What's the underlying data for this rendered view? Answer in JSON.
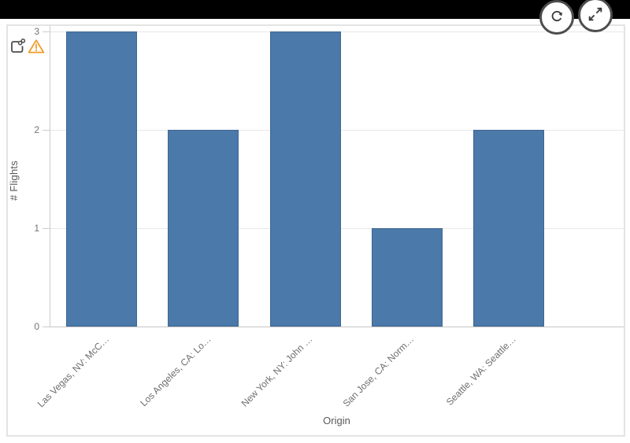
{
  "window": {
    "topbar_color": "#000000"
  },
  "toolbar": {
    "buttons": [
      {
        "name": "refresh",
        "icon": "refresh-icon"
      },
      {
        "name": "expand",
        "icon": "expand-arrows-icon"
      }
    ]
  },
  "panel": {
    "status_icons": [
      {
        "icon": "linked-object-icon"
      },
      {
        "icon": "warning-triangle-icon"
      }
    ]
  },
  "chart_data": {
    "type": "bar",
    "title": "",
    "categories": [
      "Las Vegas, NV: McC…",
      "Los Angeles, CA: Lo…",
      "New York, NY: John …",
      "San Jose, CA: Norm…",
      "Seattle, WA: Seattle…"
    ],
    "values": [
      3,
      2,
      3,
      1,
      2
    ],
    "xlabel": "Origin",
    "ylabel": "# Flights",
    "yticks": [
      0,
      1,
      2,
      3
    ],
    "ylim": [
      0,
      3
    ],
    "grid": true,
    "legend": "none",
    "bar_color": "#4a79aa"
  },
  "colors": {
    "bar": "#4a79aa",
    "gridline": "#e8e8e8",
    "axis": "#cccccc",
    "tick_text": "#737373",
    "axis_title_text": "#595959",
    "warning": "#ef9d29",
    "icon_gray": "#4c4c4c",
    "topbar": "#000000"
  }
}
